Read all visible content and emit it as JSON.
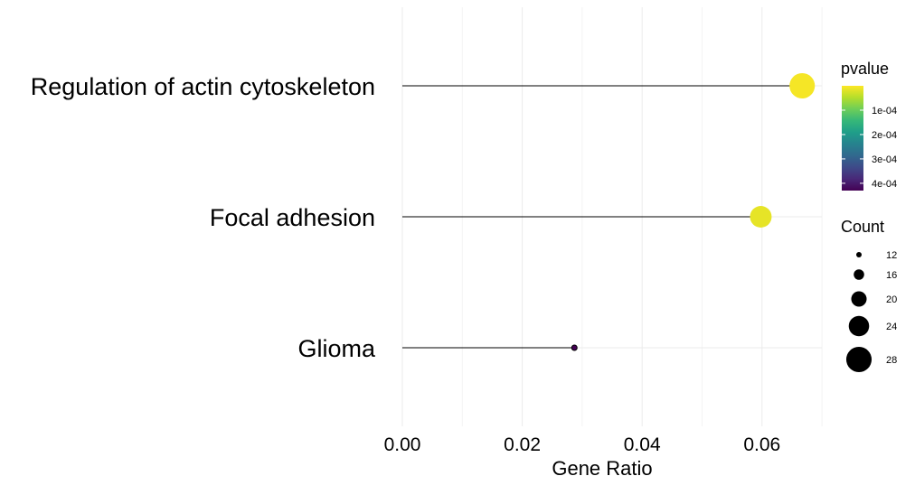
{
  "chart_data": {
    "type": "scatter",
    "subtype": "lollipop",
    "title": "",
    "xlabel": "Gene Ratio",
    "ylabel": "",
    "xlim": [
      0,
      0.07
    ],
    "x_ticks": [
      0.0,
      0.02,
      0.04,
      0.06
    ],
    "x_tick_labels": [
      "0.00",
      "0.02",
      "0.04",
      "0.06"
    ],
    "grid": true,
    "categories": [
      "Regulation of actin cytoskeleton",
      "Focal adhesion",
      "Glioma"
    ],
    "points": [
      {
        "term": "Regulation of actin cytoskeleton",
        "gene_ratio": 0.0667,
        "pvalue": 5e-06,
        "count": 28
      },
      {
        "term": "Focal adhesion",
        "gene_ratio": 0.0598,
        "pvalue": 1.5e-05,
        "count": 25
      },
      {
        "term": "Glioma",
        "gene_ratio": 0.0287,
        "pvalue": 0.00043,
        "count": 12
      }
    ],
    "color_legend": {
      "title": "pvalue",
      "placement": "right",
      "range": [
        0.0,
        0.00043
      ],
      "ticks": [
        0.0001,
        0.0002,
        0.0003,
        0.0004
      ],
      "labels": [
        "1e-04",
        "2e-04",
        "3e-04",
        "4e-04"
      ],
      "palette": [
        "#440154",
        "#482878",
        "#3e4a89",
        "#31688e",
        "#26828e",
        "#1f9e89",
        "#35b779",
        "#6ece58",
        "#b5de2b",
        "#fde725"
      ]
    },
    "size_legend": {
      "title": "Count",
      "placement": "right",
      "values": [
        12,
        16,
        20,
        24,
        28
      ],
      "labels": [
        "12",
        "16",
        "20",
        "24",
        "28"
      ]
    }
  }
}
